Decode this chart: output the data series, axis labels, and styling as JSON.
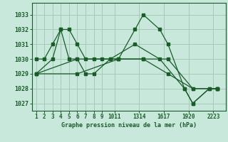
{
  "background_color": "#c8e8dc",
  "grid_color": "#a8c8b8",
  "line_color": "#1a5c28",
  "title": "Graphe pression niveau de la mer (hPa)",
  "yticks": [
    1027,
    1028,
    1029,
    1030,
    1031,
    1032,
    1033
  ],
  "ylim": [
    1026.5,
    1033.8
  ],
  "xtick_labels": [
    "1",
    "2",
    "3",
    "4",
    "5",
    "6",
    "7",
    "8",
    "9",
    "1011",
    "1314",
    "1617",
    "1920",
    "2223"
  ],
  "xtick_positions": [
    1,
    2,
    3,
    4,
    5,
    6,
    7,
    8,
    9,
    10.5,
    13.5,
    16.5,
    19.5,
    22.5
  ],
  "xlim": [
    0.5,
    24.0
  ],
  "series": [
    {
      "x": [
        1,
        2,
        3,
        4,
        5,
        6,
        7,
        8,
        9,
        10,
        11,
        13,
        14,
        16,
        17,
        19,
        20,
        22,
        23
      ],
      "y": [
        1030,
        1030,
        1031,
        1032,
        1032,
        1031,
        1030,
        1030,
        1030,
        1030,
        1030,
        1032,
        1033,
        1032,
        1031,
        1028,
        1027,
        1028,
        1028
      ]
    },
    {
      "x": [
        1,
        3,
        4,
        5,
        6,
        7,
        8,
        10,
        13,
        16,
        19,
        20,
        22,
        23
      ],
      "y": [
        1029,
        1030,
        1032,
        1030,
        1030,
        1029,
        1029,
        1030,
        1031,
        1030,
        1028,
        1027,
        1028,
        1028
      ]
    },
    {
      "x": [
        1,
        6,
        11,
        14,
        17,
        20,
        23
      ],
      "y": [
        1029,
        1030,
        1030,
        1030,
        1029,
        1028,
        1028
      ]
    },
    {
      "x": [
        1,
        6,
        11,
        14,
        17,
        20,
        23
      ],
      "y": [
        1029,
        1029,
        1030,
        1030,
        1030,
        1028,
        1028
      ]
    }
  ]
}
